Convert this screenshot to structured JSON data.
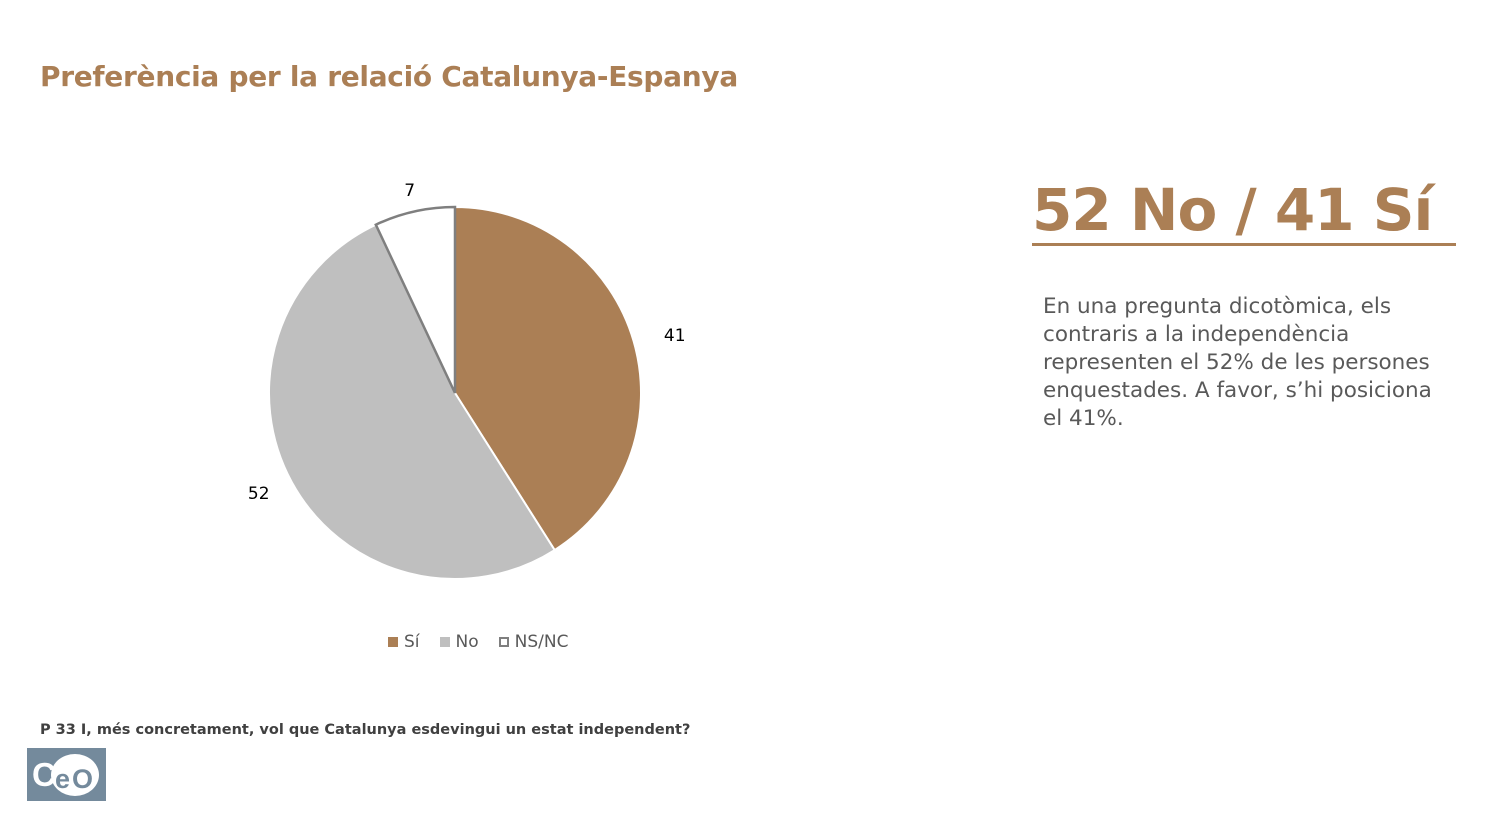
{
  "page": {
    "title": "Preferència per la relació Catalunya-Espanya",
    "headline": "52 No / 41 Sí",
    "description": "En una pregunta dicotòmica, els contraris a la independència representen el 52% de les persones enquestades. A favor, s’hi posiciona el 41%.",
    "question": "P 33 I, més concretament, vol que Catalunya esdevingui un estat independent?",
    "logo_text": "CeO"
  },
  "colors": {
    "accent": "#ab7f55",
    "si": "#ab7f55",
    "no": "#bfbfbf",
    "nsnc": "#ffffff",
    "nsnc_border": "#7f7f7f",
    "logo_bg": "#748a9c"
  },
  "chart_data": {
    "type": "pie",
    "title": "",
    "categories": [
      "Sí",
      "No",
      "NS/NC"
    ],
    "values": [
      41,
      52,
      7
    ],
    "labels": [
      "41",
      "52",
      "7"
    ],
    "legend": "bottom"
  }
}
